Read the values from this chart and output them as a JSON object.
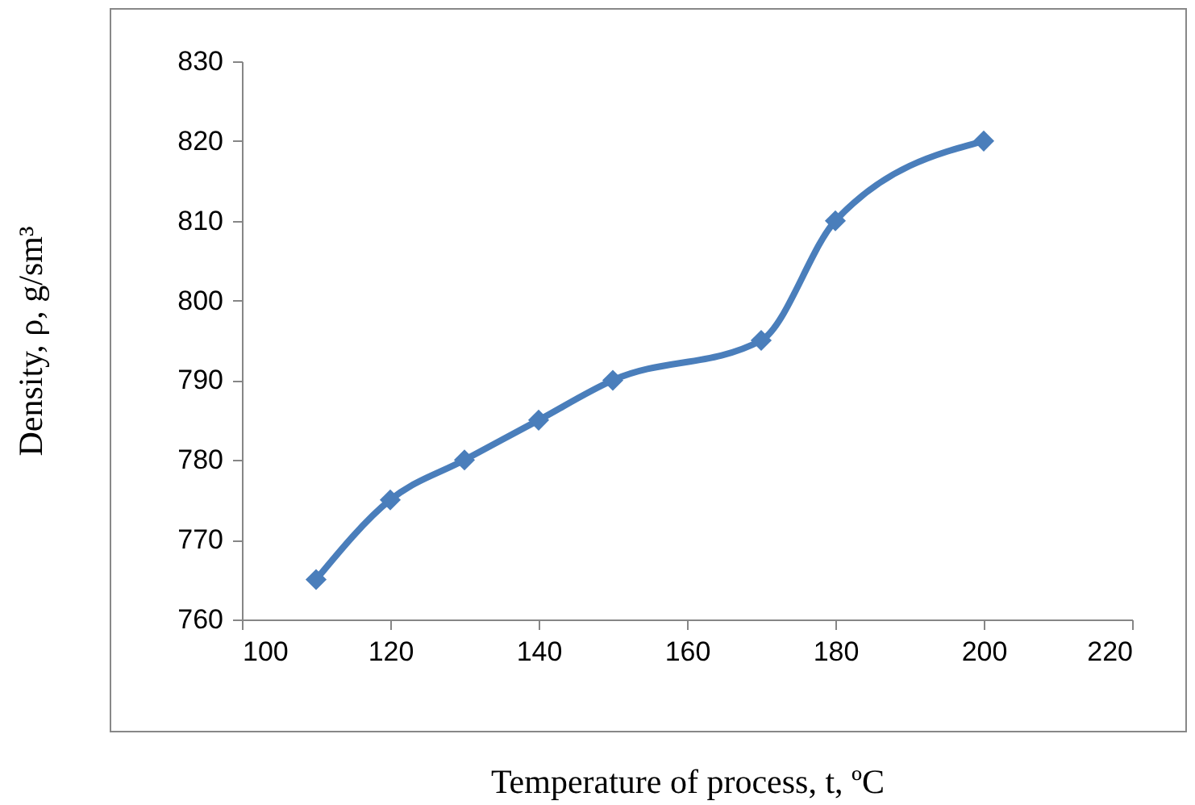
{
  "chart_data": {
    "type": "line",
    "xlabel": "Temperature of process, t, ºC",
    "ylabel": "Density, ρ, g/sm³",
    "x": [
      110,
      120,
      130,
      140,
      150,
      170,
      180,
      200
    ],
    "series": [
      {
        "color": "#4a7ebb",
        "values": [
          765,
          775,
          780,
          785,
          790,
          795,
          810,
          820
        ]
      }
    ],
    "xlim": [
      100,
      220
    ],
    "xticks": [
      100,
      120,
      140,
      160,
      180,
      200,
      220
    ],
    "ylim": [
      760,
      830
    ],
    "yticks": [
      760,
      770,
      780,
      790,
      800,
      810,
      820,
      830
    ],
    "marker": "diamond",
    "line_style": "solid"
  }
}
